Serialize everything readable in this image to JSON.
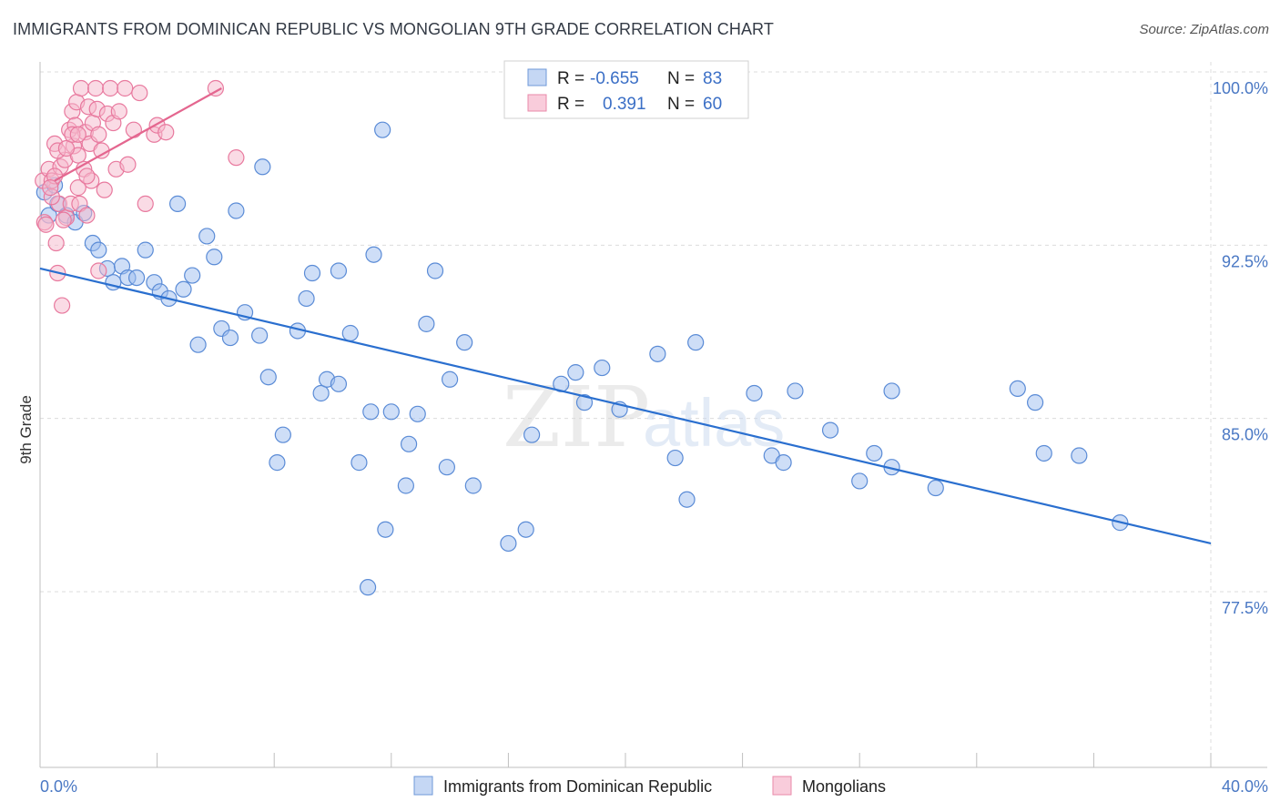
{
  "title": "IMMIGRANTS FROM DOMINICAN REPUBLIC VS MONGOLIAN 9TH GRADE CORRELATION CHART",
  "source": "Source: ZipAtlas.com",
  "watermark": {
    "zip": "ZIP",
    "atlas": "atlas"
  },
  "colors": {
    "blue": "#9dbef0",
    "blue_stroke": "#5a8bd6",
    "blue_line": "#2a6fcf",
    "pink": "#f5b8cc",
    "pink_stroke": "#e8799e",
    "pink_line": "#e4668f",
    "grid": "#dcdcdc",
    "tick_text": "#4a78c4"
  },
  "legend": {
    "rows": [
      {
        "r_label": "R =",
        "r_value": "-0.655",
        "n_label": "N =",
        "n_value": "83"
      },
      {
        "r_label": "R =",
        "r_value": "0.391",
        "n_label": "N =",
        "n_value": "60"
      }
    ]
  },
  "chart_data": {
    "type": "scatter",
    "xlabel": "",
    "ylabel": "9th Grade",
    "xlim": [
      0.0,
      40.0
    ],
    "ylim": [
      70.0,
      101.5
    ],
    "x_tick_labels": [
      "0.0%",
      "40.0%"
    ],
    "y_ticks": [
      77.5,
      85.0,
      92.5,
      100.0
    ],
    "y_tick_labels": [
      "77.5%",
      "85.0%",
      "92.5%",
      "100.0%"
    ],
    "grid": true,
    "legend_position": "top-center",
    "series": [
      {
        "name": "Immigrants from Dominican Republic",
        "points": [
          [
            0.15,
            95.5
          ],
          [
            0.3,
            94.5
          ],
          [
            0.5,
            95.8
          ],
          [
            0.6,
            95.0
          ],
          [
            0.9,
            94.5
          ],
          [
            1.2,
            94.2
          ],
          [
            1.5,
            94.6
          ],
          [
            1.8,
            93.3
          ],
          [
            2.0,
            93.0
          ],
          [
            2.3,
            92.2
          ],
          [
            2.5,
            91.6
          ],
          [
            2.8,
            92.3
          ],
          [
            3.0,
            91.8
          ],
          [
            3.3,
            91.8
          ],
          [
            3.6,
            93.0
          ],
          [
            3.9,
            91.6
          ],
          [
            4.1,
            91.2
          ],
          [
            4.4,
            90.9
          ],
          [
            4.7,
            95.0
          ],
          [
            4.9,
            91.3
          ],
          [
            5.2,
            91.9
          ],
          [
            5.4,
            88.9
          ],
          [
            5.7,
            93.6
          ],
          [
            5.95,
            92.7
          ],
          [
            6.2,
            89.6
          ],
          [
            6.5,
            89.2
          ],
          [
            6.7,
            94.7
          ],
          [
            7.0,
            90.3
          ],
          [
            7.5,
            89.3
          ],
          [
            7.6,
            96.6
          ],
          [
            7.8,
            87.5
          ],
          [
            8.3,
            85.0
          ],
          [
            8.1,
            83.8
          ],
          [
            8.8,
            89.5
          ],
          [
            9.1,
            90.9
          ],
          [
            9.3,
            92.0
          ],
          [
            9.6,
            86.8
          ],
          [
            9.8,
            87.4
          ],
          [
            10.2,
            87.2
          ],
          [
            10.2,
            92.1
          ],
          [
            10.6,
            89.4
          ],
          [
            10.9,
            83.8
          ],
          [
            11.3,
            86.0
          ],
          [
            11.2,
            78.4
          ],
          [
            11.4,
            92.8
          ],
          [
            11.7,
            98.2
          ],
          [
            11.8,
            80.9
          ],
          [
            12.0,
            86.0
          ],
          [
            12.5,
            82.8
          ],
          [
            12.6,
            84.6
          ],
          [
            12.9,
            85.9
          ],
          [
            13.2,
            89.8
          ],
          [
            13.5,
            92.1
          ],
          [
            14.0,
            87.4
          ],
          [
            13.9,
            83.6
          ],
          [
            14.5,
            89.0
          ],
          [
            14.8,
            82.8
          ],
          [
            16.0,
            80.3
          ],
          [
            16.8,
            85.0
          ],
          [
            16.6,
            80.9
          ],
          [
            17.8,
            87.2
          ],
          [
            18.3,
            87.7
          ],
          [
            18.6,
            86.4
          ],
          [
            19.2,
            87.9
          ],
          [
            19.8,
            86.1
          ],
          [
            21.1,
            88.5
          ],
          [
            21.7,
            84.0
          ],
          [
            22.1,
            82.2
          ],
          [
            22.4,
            89.0
          ],
          [
            24.4,
            86.8
          ],
          [
            25.0,
            84.1
          ],
          [
            25.4,
            83.8
          ],
          [
            25.8,
            86.9
          ],
          [
            27.0,
            85.2
          ],
          [
            28.0,
            83.0
          ],
          [
            28.5,
            84.2
          ],
          [
            29.1,
            86.9
          ],
          [
            29.1,
            83.6
          ],
          [
            30.6,
            82.7
          ],
          [
            33.4,
            87.0
          ],
          [
            34.0,
            86.4
          ],
          [
            34.3,
            84.2
          ],
          [
            35.5,
            84.1
          ],
          [
            36.9,
            81.2
          ]
        ],
        "trend": {
          "x": [
            0.0,
            40.0
          ],
          "y": [
            92.2,
            80.3
          ]
        }
      },
      {
        "name": "Mongolians",
        "points": [
          [
            0.1,
            96.0
          ],
          [
            0.15,
            94.2
          ],
          [
            0.2,
            94.1
          ],
          [
            0.3,
            96.5
          ],
          [
            0.4,
            96.0
          ],
          [
            0.5,
            97.6
          ],
          [
            0.55,
            93.3
          ],
          [
            0.6,
            92.0
          ],
          [
            0.65,
            95.0
          ],
          [
            0.7,
            96.6
          ],
          [
            0.75,
            90.6
          ],
          [
            0.85,
            96.9
          ],
          [
            0.9,
            94.4
          ],
          [
            1.0,
            98.2
          ],
          [
            1.05,
            95.0
          ],
          [
            1.1,
            99.0
          ],
          [
            1.15,
            97.5
          ],
          [
            1.2,
            98.4
          ],
          [
            1.25,
            99.4
          ],
          [
            1.3,
            97.1
          ],
          [
            1.35,
            95.0
          ],
          [
            1.4,
            100.0
          ],
          [
            1.5,
            96.5
          ],
          [
            1.55,
            98.1
          ],
          [
            1.6,
            94.5
          ],
          [
            1.65,
            99.2
          ],
          [
            1.7,
            97.6
          ],
          [
            1.75,
            96.0
          ],
          [
            1.8,
            98.5
          ],
          [
            1.9,
            100.0
          ],
          [
            1.95,
            99.1
          ],
          [
            2.0,
            98.0
          ],
          [
            2.1,
            97.3
          ],
          [
            2.2,
            95.6
          ],
          [
            2.3,
            98.9
          ],
          [
            2.4,
            100.0
          ],
          [
            2.5,
            98.5
          ],
          [
            2.6,
            96.5
          ],
          [
            2.7,
            99.0
          ],
          [
            2.9,
            100.0
          ],
          [
            3.0,
            96.7
          ],
          [
            3.2,
            98.2
          ],
          [
            3.4,
            99.8
          ],
          [
            3.6,
            95.0
          ],
          [
            3.9,
            98.0
          ],
          [
            4.0,
            98.4
          ],
          [
            4.3,
            98.1
          ],
          [
            6.0,
            100.0
          ],
          [
            6.7,
            97.0
          ],
          [
            0.4,
            95.3
          ],
          [
            0.6,
            97.3
          ],
          [
            0.8,
            94.3
          ],
          [
            1.3,
            95.7
          ],
          [
            1.6,
            96.2
          ],
          [
            0.5,
            96.2
          ],
          [
            0.9,
            97.4
          ],
          [
            1.1,
            98.0
          ],
          [
            1.3,
            98.0
          ],
          [
            0.35,
            95.7
          ],
          [
            2.0,
            92.1
          ]
        ],
        "trend": {
          "x": [
            0.5,
            6.2
          ],
          "y": [
            96.0,
            100.0
          ]
        }
      }
    ]
  }
}
